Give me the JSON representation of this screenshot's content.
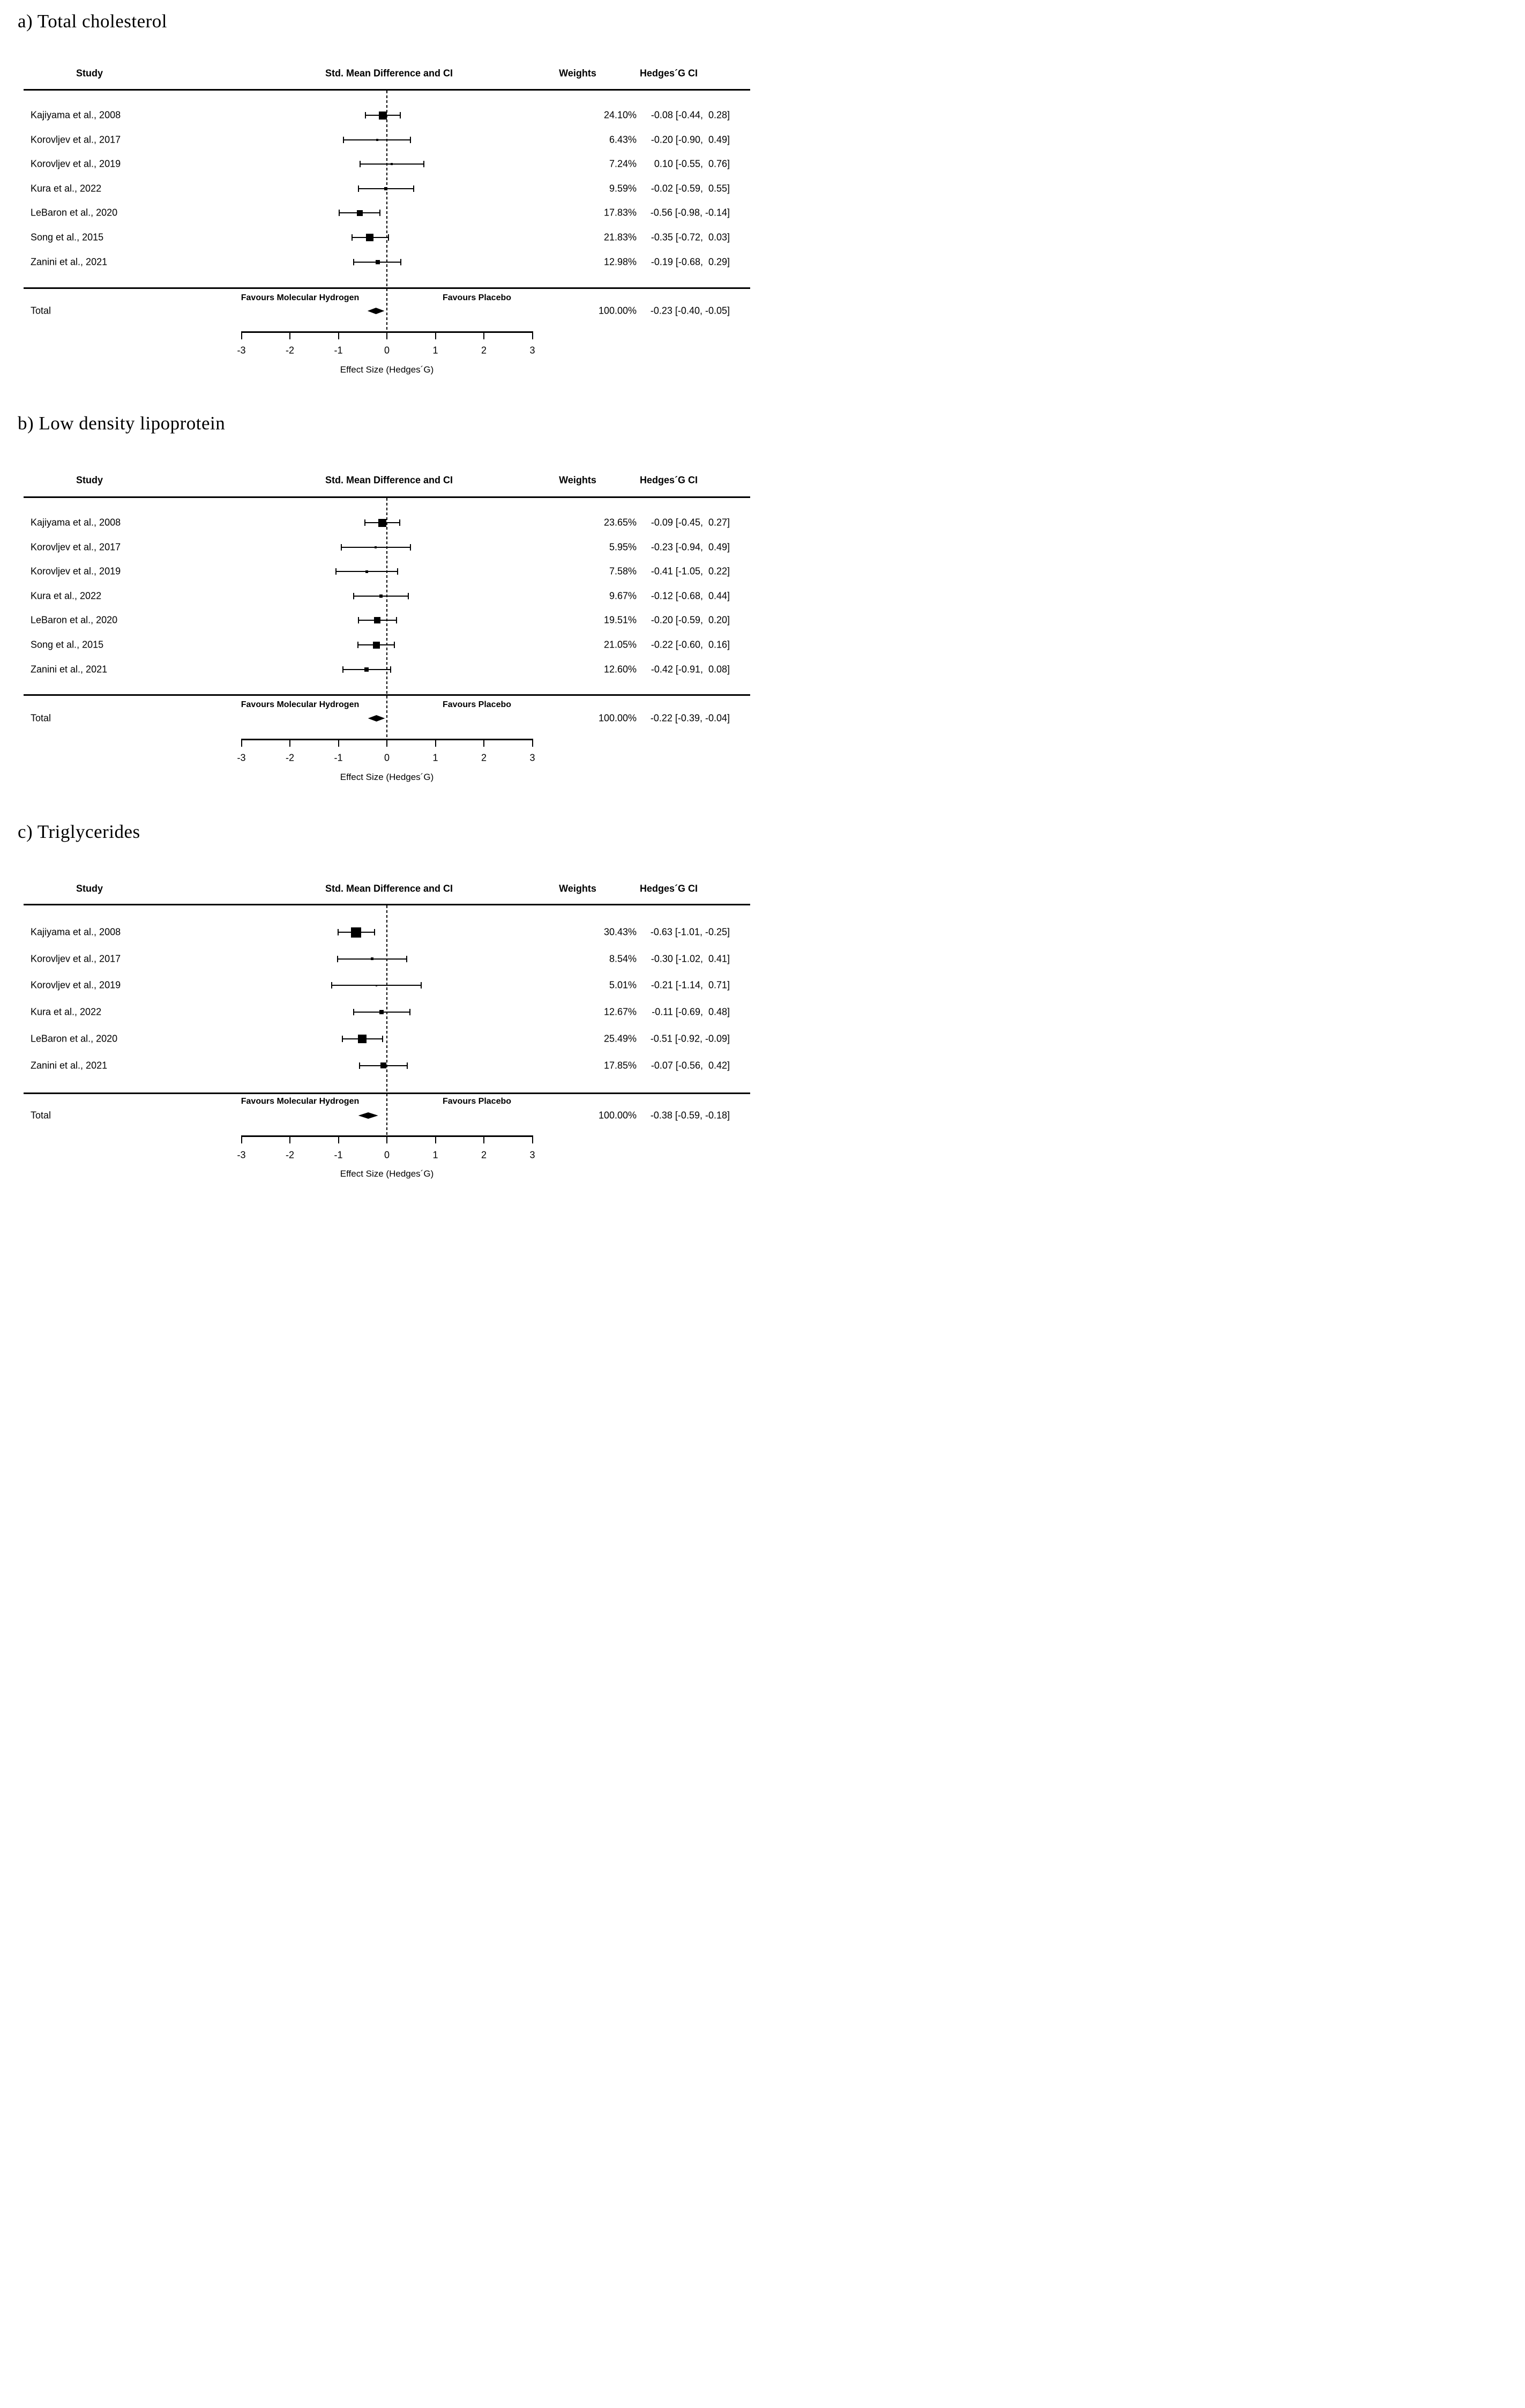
{
  "chart_data": [
    {
      "type": "forest",
      "title": "a) Total cholesterol",
      "columns": [
        "Study",
        "Std. Mean Difference and CI",
        "Weights",
        "Hedges´G CI"
      ],
      "favours_left": "Favours Molecular Hydrogen",
      "favours_right": "Favours Placebo",
      "xlabel": "Effect Size (Hedges´G)",
      "xlim": [
        -3,
        3
      ],
      "xticks": [
        -3,
        -2,
        -1,
        0,
        1,
        2,
        3
      ],
      "studies": [
        {
          "name": "Kajiyama et al., 2008",
          "weight": "24.10%",
          "weight_pct": 24.1,
          "est": -0.08,
          "lo": -0.44,
          "hi": 0.28,
          "ci": "-0.08 [-0.44,  0.28]"
        },
        {
          "name": "Korovljev et al., 2017",
          "weight": "6.43%",
          "weight_pct": 6.43,
          "est": -0.2,
          "lo": -0.9,
          "hi": 0.49,
          "ci": "-0.20 [-0.90,  0.49]"
        },
        {
          "name": "Korovljev et al., 2019",
          "weight": "7.24%",
          "weight_pct": 7.24,
          "est": 0.1,
          "lo": -0.55,
          "hi": 0.76,
          "ci": "0.10 [-0.55,  0.76]"
        },
        {
          "name": "Kura et al., 2022",
          "weight": "9.59%",
          "weight_pct": 9.59,
          "est": -0.02,
          "lo": -0.59,
          "hi": 0.55,
          "ci": "-0.02 [-0.59,  0.55]"
        },
        {
          "name": "LeBaron et al., 2020",
          "weight": "17.83%",
          "weight_pct": 17.83,
          "est": -0.56,
          "lo": -0.98,
          "hi": -0.14,
          "ci": "-0.56 [-0.98, -0.14]"
        },
        {
          "name": "Song et al., 2015",
          "weight": "21.83%",
          "weight_pct": 21.83,
          "est": -0.35,
          "lo": -0.72,
          "hi": 0.03,
          "ci": "-0.35 [-0.72,  0.03]"
        },
        {
          "name": "Zanini et al., 2021",
          "weight": "12.98%",
          "weight_pct": 12.98,
          "est": -0.19,
          "lo": -0.68,
          "hi": 0.29,
          "ci": "-0.19 [-0.68,  0.29]"
        }
      ],
      "total": {
        "name": "Total",
        "weight": "100.00%",
        "weight_pct": 100.0,
        "est": -0.23,
        "lo": -0.4,
        "hi": -0.05,
        "ci": "-0.23 [-0.40, -0.05]"
      }
    },
    {
      "type": "forest",
      "title": "b) Low density lipoprotein",
      "columns": [
        "Study",
        "Std. Mean Difference and CI",
        "Weights",
        "Hedges´G CI"
      ],
      "favours_left": "Favours Molecular Hydrogen",
      "favours_right": "Favours Placebo",
      "xlabel": "Effect Size (Hedges´G)",
      "xlim": [
        -3,
        3
      ],
      "xticks": [
        -3,
        -2,
        -1,
        0,
        1,
        2,
        3
      ],
      "studies": [
        {
          "name": "Kajiyama et al., 2008",
          "weight": "23.65%",
          "weight_pct": 23.65,
          "est": -0.09,
          "lo": -0.45,
          "hi": 0.27,
          "ci": "-0.09 [-0.45,  0.27]"
        },
        {
          "name": "Korovljev et al., 2017",
          "weight": "5.95%",
          "weight_pct": 5.95,
          "est": -0.23,
          "lo": -0.94,
          "hi": 0.49,
          "ci": "-0.23 [-0.94,  0.49]"
        },
        {
          "name": "Korovljev et al., 2019",
          "weight": "7.58%",
          "weight_pct": 7.58,
          "est": -0.41,
          "lo": -1.05,
          "hi": 0.22,
          "ci": "-0.41 [-1.05,  0.22]"
        },
        {
          "name": "Kura et al., 2022",
          "weight": "9.67%",
          "weight_pct": 9.67,
          "est": -0.12,
          "lo": -0.68,
          "hi": 0.44,
          "ci": "-0.12 [-0.68,  0.44]"
        },
        {
          "name": "LeBaron et al., 2020",
          "weight": "19.51%",
          "weight_pct": 19.51,
          "est": -0.2,
          "lo": -0.59,
          "hi": 0.2,
          "ci": "-0.20 [-0.59,  0.20]"
        },
        {
          "name": "Song et al., 2015",
          "weight": "21.05%",
          "weight_pct": 21.05,
          "est": -0.22,
          "lo": -0.6,
          "hi": 0.16,
          "ci": "-0.22 [-0.60,  0.16]"
        },
        {
          "name": "Zanini et al., 2021",
          "weight": "12.60%",
          "weight_pct": 12.6,
          "est": -0.42,
          "lo": -0.91,
          "hi": 0.08,
          "ci": "-0.42 [-0.91,  0.08]"
        }
      ],
      "total": {
        "name": "Total",
        "weight": "100.00%",
        "weight_pct": 100.0,
        "est": -0.22,
        "lo": -0.39,
        "hi": -0.04,
        "ci": "-0.22 [-0.39, -0.04]"
      }
    },
    {
      "type": "forest",
      "title": "c) Triglycerides",
      "columns": [
        "Study",
        "Std. Mean Difference and CI",
        "Weights",
        "Hedges´G CI"
      ],
      "favours_left": "Favours Molecular Hydrogen",
      "favours_right": "Favours Placebo",
      "xlabel": "Effect Size (Hedges´G)",
      "xlim": [
        -3,
        3
      ],
      "xticks": [
        -3,
        -2,
        -1,
        0,
        1,
        2,
        3
      ],
      "studies": [
        {
          "name": "Kajiyama et al., 2008",
          "weight": "30.43%",
          "weight_pct": 30.43,
          "est": -0.63,
          "lo": -1.01,
          "hi": -0.25,
          "ci": "-0.63 [-1.01, -0.25]"
        },
        {
          "name": "Korovljev et al., 2017",
          "weight": "8.54%",
          "weight_pct": 8.54,
          "est": -0.3,
          "lo": -1.02,
          "hi": 0.41,
          "ci": "-0.30 [-1.02,  0.41]"
        },
        {
          "name": "Korovljev et al., 2019",
          "weight": "5.01%",
          "weight_pct": 5.01,
          "est": -0.21,
          "lo": -1.14,
          "hi": 0.71,
          "ci": "-0.21 [-1.14,  0.71]"
        },
        {
          "name": "Kura et al., 2022",
          "weight": "12.67%",
          "weight_pct": 12.67,
          "est": -0.11,
          "lo": -0.69,
          "hi": 0.48,
          "ci": "-0.11 [-0.69,  0.48]"
        },
        {
          "name": "LeBaron et al., 2020",
          "weight": "25.49%",
          "weight_pct": 25.49,
          "est": -0.51,
          "lo": -0.92,
          "hi": -0.09,
          "ci": "-0.51 [-0.92, -0.09]"
        },
        {
          "name": "Zanini et al., 2021",
          "weight": "17.85%",
          "weight_pct": 17.85,
          "est": -0.07,
          "lo": -0.56,
          "hi": 0.42,
          "ci": "-0.07 [-0.56,  0.42]"
        }
      ],
      "total": {
        "name": "Total",
        "weight": "100.00%",
        "weight_pct": 100.0,
        "est": -0.38,
        "lo": -0.59,
        "hi": -0.18,
        "ci": "-0.38 [-0.59, -0.18]"
      }
    }
  ]
}
